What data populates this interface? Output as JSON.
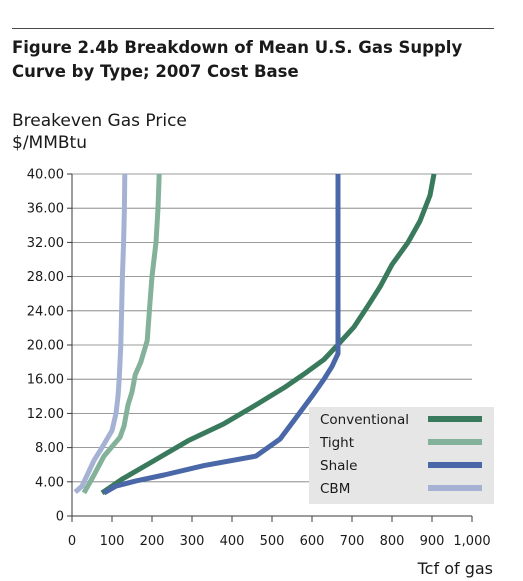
{
  "chart_data": {
    "type": "line",
    "title": "Figure 2.4b  Breakdown of Mean U.S. Gas Supply Curve by Type; 2007 Cost Base",
    "ylabel_line1": "Breakeven Gas Price",
    "ylabel_line2": "$/MMBtu",
    "xlabel": "Tcf of gas",
    "xlim": [
      0,
      1000
    ],
    "ylim": [
      0,
      40
    ],
    "xticks": [
      0,
      100,
      200,
      300,
      400,
      500,
      600,
      700,
      800,
      900,
      1000
    ],
    "xtick_labels": [
      "0",
      "100",
      "200",
      "300",
      "400",
      "500",
      "600",
      "700",
      "800",
      "900",
      "1,000"
    ],
    "yticks": [
      0,
      4,
      8,
      12,
      16,
      20,
      24,
      28,
      32,
      36,
      40
    ],
    "ytick_labels": [
      "0",
      "4.00",
      "8.00",
      "12.00",
      "16.00",
      "20.00",
      "24.00",
      "28.00",
      "32.00",
      "36.00",
      "40.00"
    ],
    "grid": "horizontal",
    "legend_position": "bottom-right",
    "series": [
      {
        "name": "Conventional",
        "color": "#3a7a5c",
        "points": [
          [
            75,
            2.7
          ],
          [
            125,
            4.3
          ],
          [
            195,
            6.2
          ],
          [
            290,
            8.8
          ],
          [
            380,
            10.8
          ],
          [
            460,
            13.0
          ],
          [
            530,
            15.0
          ],
          [
            580,
            16.6
          ],
          [
            630,
            18.3
          ],
          [
            670,
            20.3
          ],
          [
            705,
            22.1
          ],
          [
            740,
            24.6
          ],
          [
            770,
            26.8
          ],
          [
            800,
            29.4
          ],
          [
            840,
            32.0
          ],
          [
            870,
            34.5
          ],
          [
            895,
            37.5
          ],
          [
            905,
            40.0
          ]
        ]
      },
      {
        "name": "Tight",
        "color": "#84b19a",
        "points": [
          [
            30,
            2.7
          ],
          [
            55,
            4.8
          ],
          [
            80,
            7.0
          ],
          [
            120,
            9.2
          ],
          [
            130,
            10.5
          ],
          [
            140,
            13.0
          ],
          [
            150,
            14.5
          ],
          [
            158,
            16.5
          ],
          [
            172,
            18.0
          ],
          [
            188,
            20.5
          ],
          [
            195,
            25.0
          ],
          [
            200,
            28.0
          ],
          [
            210,
            32.0
          ],
          [
            215,
            36.0
          ],
          [
            218,
            40.0
          ]
        ]
      },
      {
        "name": "Shale",
        "color": "#4a68a8",
        "points": [
          [
            80,
            2.7
          ],
          [
            110,
            3.5
          ],
          [
            160,
            4.1
          ],
          [
            230,
            4.8
          ],
          [
            330,
            5.9
          ],
          [
            460,
            7.0
          ],
          [
            520,
            9.0
          ],
          [
            560,
            11.5
          ],
          [
            600,
            14.0
          ],
          [
            630,
            16.0
          ],
          [
            650,
            17.5
          ],
          [
            665,
            19.0
          ],
          [
            665,
            25.0
          ],
          [
            665,
            32.0
          ],
          [
            665,
            39.0
          ],
          [
            665,
            40.0
          ]
        ]
      },
      {
        "name": "CBM",
        "color": "#a6b2d4",
        "points": [
          [
            8,
            2.8
          ],
          [
            25,
            3.5
          ],
          [
            40,
            5.0
          ],
          [
            55,
            6.5
          ],
          [
            75,
            8.0
          ],
          [
            100,
            10.0
          ],
          [
            110,
            12.0
          ],
          [
            115,
            14.0
          ],
          [
            118,
            16.0
          ],
          [
            120,
            18.0
          ],
          [
            122,
            20.0
          ],
          [
            124,
            24.0
          ],
          [
            126,
            28.0
          ],
          [
            129,
            32.0
          ],
          [
            131,
            36.0
          ],
          [
            132,
            40.0
          ]
        ]
      }
    ]
  }
}
